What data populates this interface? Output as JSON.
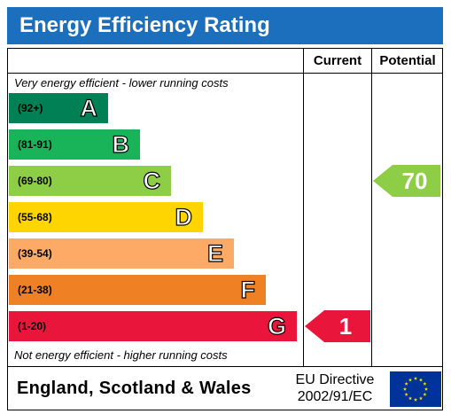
{
  "title": "Energy Efficiency Rating",
  "columns": {
    "current": "Current",
    "potential": "Potential"
  },
  "notes": {
    "top": "Very energy efficient - lower running costs",
    "bottom": "Not energy efficient - higher running costs"
  },
  "footer": {
    "country": "England, Scotland & Wales",
    "directive_line1": "EU Directive",
    "directive_line2": "2002/91/EC"
  },
  "colors": {
    "title_bar": "#1b6fbd",
    "A": "#008054",
    "B": "#19b459",
    "C": "#8dce46",
    "D": "#ffd500",
    "E": "#fcaa65",
    "F": "#ef8023",
    "G": "#e9153b",
    "eu_flag": "#003399",
    "eu_stars": "#ffdd00"
  },
  "chart_data": {
    "type": "bar",
    "categories": [
      "A",
      "B",
      "C",
      "D",
      "E",
      "F",
      "G"
    ],
    "ranges": [
      "(92+)",
      "(81-91)",
      "(69-80)",
      "(55-68)",
      "(39-54)",
      "(21-38)",
      "(1-20)"
    ],
    "series": [
      {
        "name": "Current",
        "value": 1,
        "band": "G",
        "color": "#e9153b"
      },
      {
        "name": "Potential",
        "value": 70,
        "band": "C",
        "color": "#8dce46"
      }
    ]
  }
}
